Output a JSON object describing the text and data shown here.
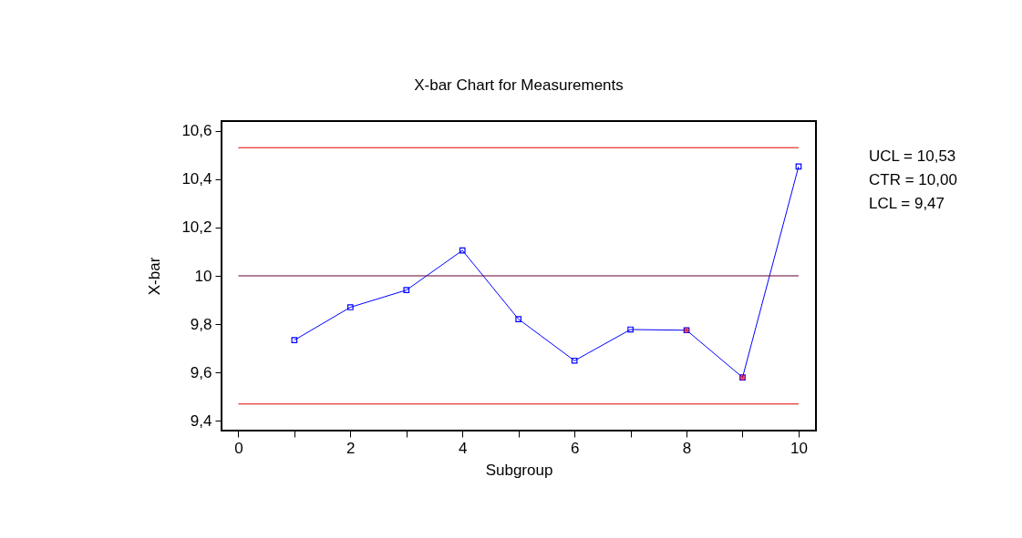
{
  "chart_data": {
    "type": "line",
    "title": "X-bar Chart for Measurements",
    "xlabel": "Subgroup",
    "ylabel": "X-bar",
    "x": [
      1,
      2,
      3,
      4,
      5,
      6,
      7,
      8,
      9,
      10
    ],
    "series": [
      {
        "color": "#0000ff",
        "marker": "square",
        "values": [
          9.734,
          9.87,
          9.941,
          10.105,
          9.821,
          9.649,
          9.778,
          9.775,
          9.58,
          10.452
        ]
      },
      {
        "type": "scatter",
        "color": "#ff0000",
        "marker": "cross",
        "x": [
          8,
          9
        ],
        "values": [
          9.775,
          9.58
        ]
      }
    ],
    "xlim": [
      -0.3,
      10.31
    ],
    "xticks": [
      0,
      {
        "value": 1,
        "label": null
      },
      2,
      {
        "value": 3,
        "label": null
      },
      4,
      {
        "value": 5,
        "label": null
      },
      6,
      {
        "value": 7,
        "label": null
      },
      8,
      {
        "value": 9,
        "label": null
      },
      10
    ],
    "ylim": [
      9.36,
      10.64
    ],
    "yticks": [
      {
        "value": 9.4,
        "label": "9,4"
      },
      {
        "value": 9.6,
        "label": "9,6"
      },
      {
        "value": 9.8,
        "label": "9,8"
      },
      10,
      {
        "value": 10.2,
        "label": "10,2"
      },
      {
        "value": 10.4,
        "label": "10,4"
      },
      {
        "value": 10.6,
        "label": "10,6"
      }
    ],
    "ref_lines": [
      {
        "axis": "y",
        "value": 10.53,
        "color": "#e00000"
      },
      {
        "axis": "y",
        "value": 10.0,
        "color": "#600030"
      },
      {
        "axis": "y",
        "value": 9.47,
        "color": "#e00000"
      }
    ],
    "annotations": [
      "UCL = 10,53",
      "CTR = 10,00",
      "LCL = 9,47"
    ],
    "grid": false
  }
}
